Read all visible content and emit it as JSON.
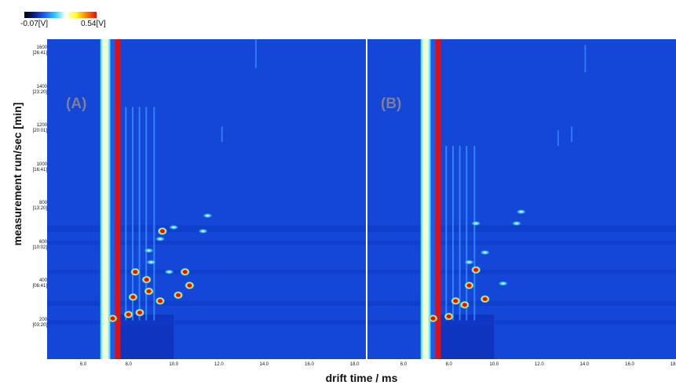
{
  "colorbar": {
    "min_label": "-0.07[V]",
    "max_label": "0.54[V]",
    "colors": [
      "#000000",
      "#0a1e8c",
      "#1e60ff",
      "#2ad0ff",
      "#ffffff",
      "#ffff20",
      "#ff8000",
      "#e01010"
    ]
  },
  "chart_data": {
    "type": "heatmap",
    "panels": [
      {
        "label": "(A)"
      },
      {
        "label": "(B)"
      }
    ],
    "xlabel": "drift time / ms",
    "ylabel": "measurement run/sec [min]",
    "xlim": [
      4.4,
      18.5
    ],
    "ylim": [
      0,
      1650
    ],
    "xticks": [
      "6.0",
      "8.0",
      "10.0",
      "12.0",
      "14.0",
      "16.0",
      "18.0"
    ],
    "yticks": [
      {
        "value": 200,
        "label": "200",
        "sub": "[03:20]"
      },
      {
        "value": 400,
        "label": "400",
        "sub": "[06:41]"
      },
      {
        "value": 600,
        "label": "600",
        "sub": "[10:02]"
      },
      {
        "value": 800,
        "label": "800",
        "sub": "[13:20]"
      },
      {
        "value": 1000,
        "label": "1000",
        "sub": "[16:41]"
      },
      {
        "value": 1200,
        "label": "1200",
        "sub": "[20:01]"
      },
      {
        "value": 1400,
        "label": "1400",
        "sub": "[23:20]"
      },
      {
        "value": 1600,
        "label": "1600",
        "sub": "[26:41]"
      }
    ],
    "background_color": "#1446d8",
    "rip_position_ms": 7.45,
    "intense_peaks_A": [
      {
        "x": 7.3,
        "y": 210
      },
      {
        "x": 8.0,
        "y": 230
      },
      {
        "x": 8.5,
        "y": 240
      },
      {
        "x": 8.2,
        "y": 320
      },
      {
        "x": 8.9,
        "y": 350
      },
      {
        "x": 9.4,
        "y": 300
      },
      {
        "x": 10.2,
        "y": 330
      },
      {
        "x": 10.5,
        "y": 450
      },
      {
        "x": 10.7,
        "y": 380
      },
      {
        "x": 8.8,
        "y": 410
      },
      {
        "x": 8.3,
        "y": 450
      },
      {
        "x": 9.5,
        "y": 660
      }
    ],
    "intense_peaks_B": [
      {
        "x": 7.3,
        "y": 210
      },
      {
        "x": 8.0,
        "y": 220
      },
      {
        "x": 8.7,
        "y": 280
      },
      {
        "x": 9.2,
        "y": 460
      },
      {
        "x": 9.6,
        "y": 310
      },
      {
        "x": 8.9,
        "y": 380
      },
      {
        "x": 8.3,
        "y": 300
      }
    ]
  }
}
